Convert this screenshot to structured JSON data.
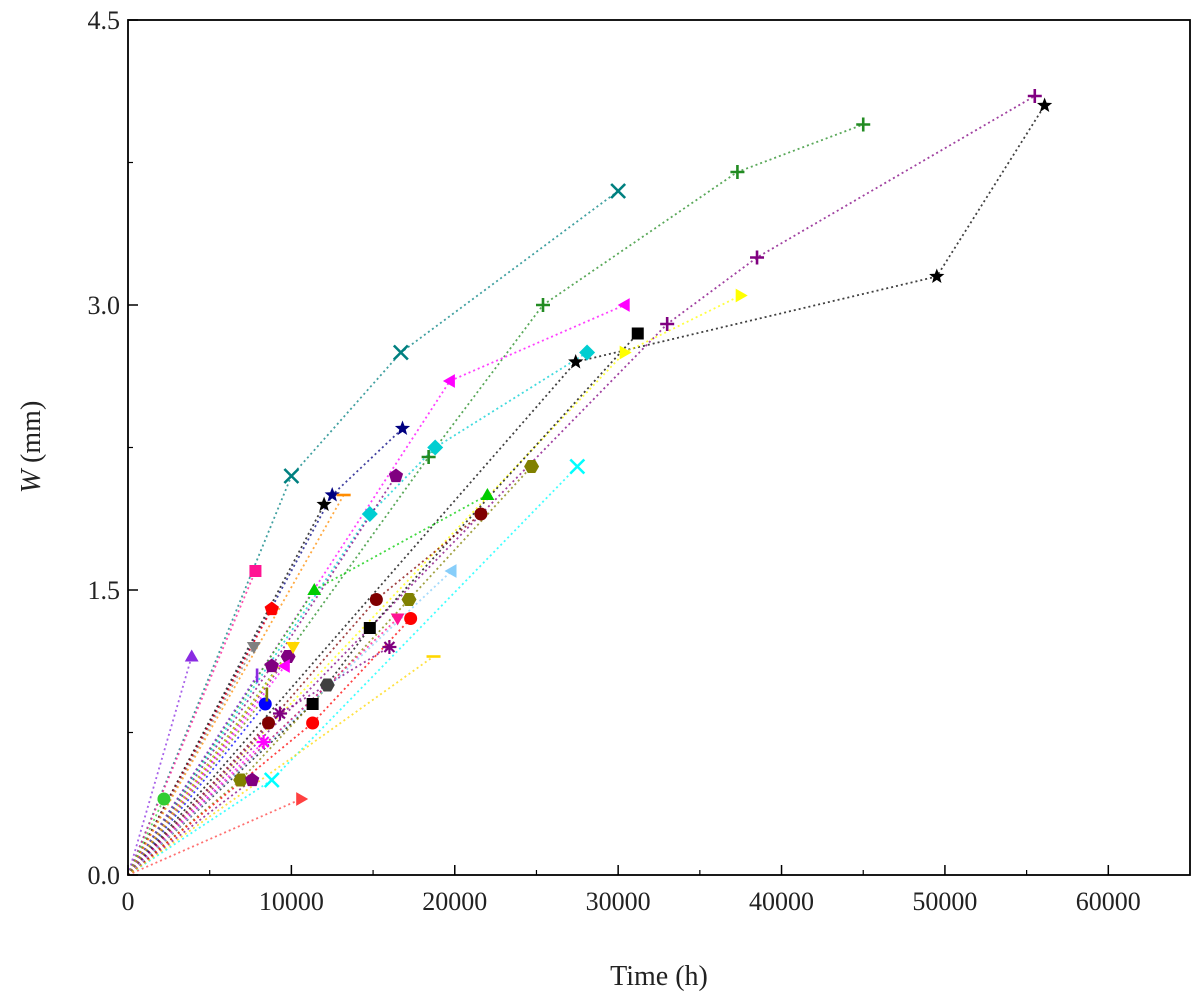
{
  "chart_data": {
    "type": "scatter",
    "title": "",
    "xlabel": "Time (h)",
    "ylabel_symbol": "W",
    "ylabel_unit": " (mm)",
    "xlim": [
      0,
      65000
    ],
    "ylim": [
      0,
      4.5
    ],
    "xticks": [
      0,
      10000,
      20000,
      30000,
      40000,
      50000,
      60000
    ],
    "xtick_labels": [
      "0",
      "10000",
      "20000",
      "30000",
      "40000",
      "50000",
      "60000"
    ],
    "yticks": [
      0,
      1.5,
      3.0,
      4.5
    ],
    "ytick_labels": [
      "0.0",
      "1.5",
      "3.0",
      "4.5"
    ],
    "grid": false,
    "legend": "none",
    "series": [
      {
        "color": "#008080",
        "marker": "x",
        "x": [
          0,
          10000,
          16700,
          30000
        ],
        "y": [
          0,
          2.1,
          2.75,
          3.6
        ]
      },
      {
        "color": "#228B22",
        "marker": "plus",
        "x": [
          0,
          18400,
          25400,
          37300,
          45000
        ],
        "y": [
          0,
          2.2,
          3.0,
          3.7,
          3.95
        ]
      },
      {
        "color": "#800080",
        "marker": "plus",
        "x": [
          0,
          33000,
          38500,
          55500
        ],
        "y": [
          0,
          2.9,
          3.25,
          4.1
        ]
      },
      {
        "color": "#000000",
        "marker": "star",
        "x": [
          0,
          27400,
          49500,
          56100
        ],
        "y": [
          0,
          2.7,
          3.15,
          4.05
        ]
      },
      {
        "color": "#000080",
        "marker": "star",
        "x": [
          0,
          12500,
          16800
        ],
        "y": [
          0,
          2.0,
          2.35
        ]
      },
      {
        "color": "#000000",
        "marker": "star",
        "x": [
          0,
          12000
        ],
        "y": [
          0,
          1.95
        ]
      },
      {
        "color": "#FF00FF",
        "marker": "tri-left",
        "x": [
          0,
          19700,
          30400
        ],
        "y": [
          0,
          2.6,
          3.0
        ]
      },
      {
        "color": "#00CED1",
        "marker": "diamond",
        "x": [
          0,
          14800,
          18800,
          28100
        ],
        "y": [
          0,
          1.9,
          2.25,
          2.75
        ]
      },
      {
        "color": "#FFFF00",
        "marker": "tri-right",
        "x": [
          0,
          30400,
          37500
        ],
        "y": [
          0,
          2.75,
          3.05
        ]
      },
      {
        "color": "#000000",
        "marker": "square",
        "x": [
          0,
          11300,
          14800,
          31200
        ],
        "y": [
          0,
          0.9,
          1.3,
          2.85
        ]
      },
      {
        "color": "#800080",
        "marker": "pentagon",
        "x": [
          0,
          8800,
          16400
        ],
        "y": [
          0,
          1.1,
          2.1
        ]
      },
      {
        "color": "#00CC00",
        "marker": "triangle",
        "x": [
          0,
          11400,
          22000
        ],
        "y": [
          0,
          1.5,
          2.0
        ]
      },
      {
        "color": "#800000",
        "marker": "circle",
        "x": [
          0,
          8600,
          15200,
          21600
        ],
        "y": [
          0,
          0.8,
          1.45,
          1.9
        ]
      },
      {
        "color": "#808000",
        "marker": "hexagon",
        "x": [
          0,
          6900,
          17200,
          24700
        ],
        "y": [
          0,
          0.5,
          1.45,
          2.15
        ]
      },
      {
        "color": "#00FFFF",
        "marker": "x",
        "x": [
          0,
          8800,
          27500
        ],
        "y": [
          0,
          0.5,
          2.15
        ]
      },
      {
        "color": "#FF1493",
        "marker": "square",
        "x": [
          0,
          7800
        ],
        "y": [
          0,
          1.6
        ]
      },
      {
        "color": "#FF0000",
        "marker": "pentagon",
        "x": [
          0,
          8800
        ],
        "y": [
          0,
          1.4
        ]
      },
      {
        "color": "#808080",
        "marker": "tri-down",
        "x": [
          0,
          7700
        ],
        "y": [
          0,
          1.2
        ]
      },
      {
        "color": "#8A2BE2",
        "marker": "triangle",
        "x": [
          0,
          3900
        ],
        "y": [
          0,
          1.15
        ]
      },
      {
        "color": "#800080",
        "marker": "hexagon",
        "x": [
          0,
          9800
        ],
        "y": [
          0,
          1.15
        ]
      },
      {
        "color": "#FF00FF",
        "marker": "tri-left",
        "x": [
          0,
          9600
        ],
        "y": [
          0,
          1.1
        ]
      },
      {
        "color": "#0000FF",
        "marker": "circle",
        "x": [
          0,
          8400
        ],
        "y": [
          0,
          0.9
        ]
      },
      {
        "color": "#800080",
        "marker": "asterisk",
        "x": [
          0,
          9300,
          16000
        ],
        "y": [
          0,
          0.85,
          1.2
        ]
      },
      {
        "color": "#FF0000",
        "marker": "circle",
        "x": [
          0,
          11300,
          17300
        ],
        "y": [
          0,
          0.8,
          1.35
        ]
      },
      {
        "color": "#FF00FF",
        "marker": "asterisk",
        "x": [
          0,
          8300
        ],
        "y": [
          0,
          0.7
        ]
      },
      {
        "color": "#404040",
        "marker": "hexagon",
        "x": [
          0,
          12200
        ],
        "y": [
          0,
          1.0
        ]
      },
      {
        "color": "#FF1493",
        "marker": "tri-down",
        "x": [
          0,
          16500
        ],
        "y": [
          0,
          1.35
        ]
      },
      {
        "color": "#87CEFA",
        "marker": "tri-left",
        "x": [
          0,
          19800
        ],
        "y": [
          0,
          1.6
        ]
      },
      {
        "color": "#800080",
        "marker": "pentagon",
        "x": [
          0,
          7600
        ],
        "y": [
          0,
          0.5
        ]
      },
      {
        "color": "#32CD32",
        "marker": "circle",
        "x": [
          0,
          2200
        ],
        "y": [
          0,
          0.4
        ]
      },
      {
        "color": "#FF4040",
        "marker": "tri-right",
        "x": [
          0,
          10600
        ],
        "y": [
          0,
          0.4
        ]
      },
      {
        "color": "#FFD700",
        "marker": "hline",
        "x": [
          0,
          18700
        ],
        "y": [
          0,
          1.15
        ]
      },
      {
        "color": "#FFD700",
        "marker": "tri-down",
        "x": [
          0,
          10100
        ],
        "y": [
          0,
          1.2
        ]
      },
      {
        "color": "#FF8C00",
        "marker": "hline",
        "x": [
          0,
          13200
        ],
        "y": [
          0,
          2.0
        ]
      },
      {
        "color": "#8A2BE2",
        "marker": "vline",
        "x": [
          0,
          7900
        ],
        "y": [
          0,
          1.05
        ]
      },
      {
        "color": "#808000",
        "marker": "vline",
        "x": [
          0,
          8500
        ],
        "y": [
          0,
          0.95
        ]
      }
    ]
  }
}
